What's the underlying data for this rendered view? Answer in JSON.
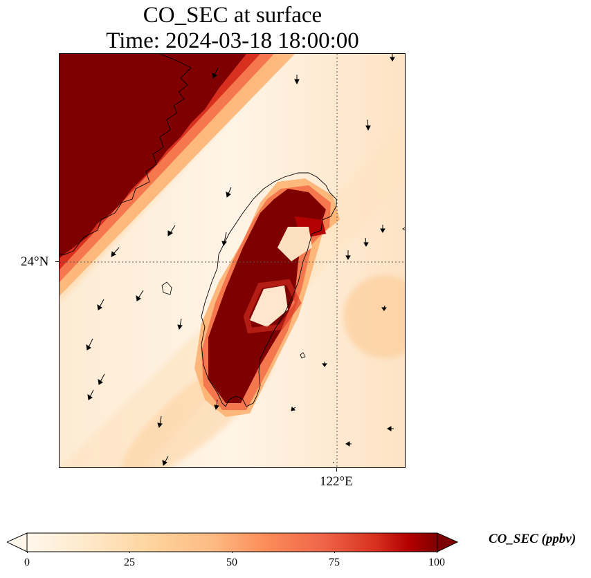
{
  "title_line1": "CO_SEC at surface",
  "title_line2": "Time: 2024-03-18 18:00:00",
  "map": {
    "lat_gridline_label": "24°N",
    "lon_gridline_label": "122°E",
    "colormap": "OrRd",
    "colors": [
      "#fff7ec",
      "#fdd49e",
      "#fc8d59",
      "#d7301f",
      "#7f0000"
    ]
  },
  "colorbar": {
    "label": "CO_SEC (ppbv)",
    "ticks": [
      "0",
      "25",
      "50",
      "75",
      "100"
    ],
    "min": 0,
    "max": 100,
    "extend": "both"
  }
}
